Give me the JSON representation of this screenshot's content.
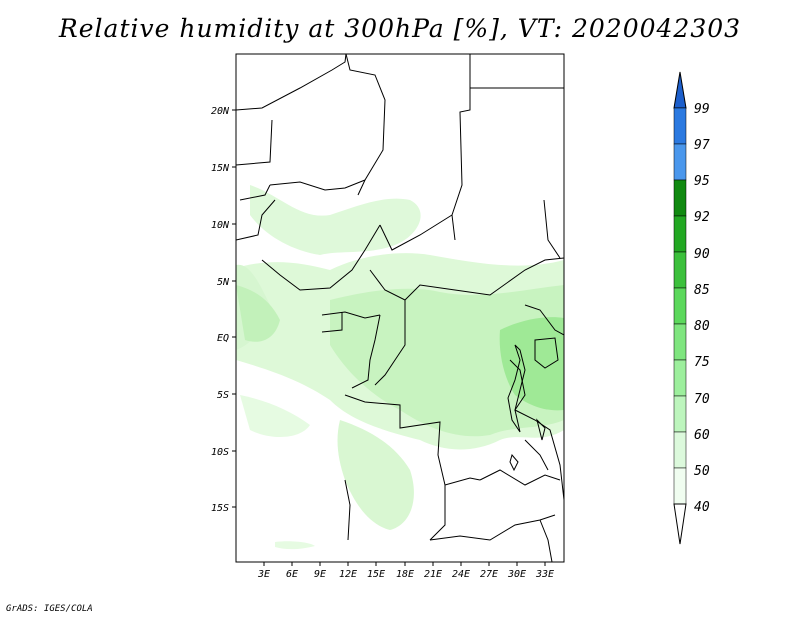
{
  "title": "Relative humidity at 300hPa [%], VT: 2020042303",
  "credit": "GrADS: IGES/COLA",
  "lat_labels": [
    "20N",
    "15N",
    "10N",
    "5N",
    "EQ",
    "5S",
    "10S",
    "15S"
  ],
  "lon_labels": [
    "3E",
    "6E",
    "9E",
    "12E",
    "15E",
    "18E",
    "21E",
    "24E",
    "27E",
    "30E",
    "33E"
  ],
  "colorbar": {
    "labels": [
      "99",
      "97",
      "95",
      "92",
      "90",
      "85",
      "80",
      "75",
      "70",
      "60",
      "50",
      "40"
    ],
    "colors": [
      "#1c5fcc",
      "#2b79e0",
      "#4a97ec",
      "#118a11",
      "#22a822",
      "#3cc03c",
      "#5cd85c",
      "#7fe57f",
      "#9def9d",
      "#bdf5bd",
      "#dcf9dc",
      "#f0fdf0",
      "#ffffff"
    ]
  },
  "colors": {
    "land_border": "#000000",
    "humidity_fill": "#b8f0b0"
  }
}
